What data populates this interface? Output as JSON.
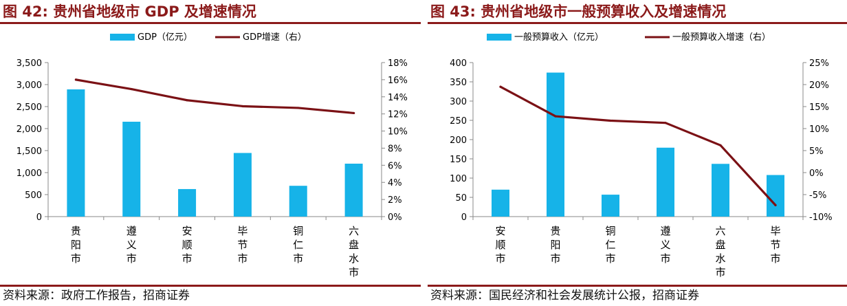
{
  "charts": [
    {
      "figure_title": "图 42: 贵州省地级市 GDP 及增速情况",
      "source": "资料来源：政府工作报告，招商证券",
      "colors": {
        "bar": "#16B3E8",
        "line": "#7B1115",
        "axis": "#888888"
      }
    },
    {
      "figure_title": "图 43: 贵州省地级市一般预算收入及增速情况",
      "source": "资料来源：国民经济和社会发展统计公报，招商证券",
      "colors": {
        "bar": "#16B3E8",
        "line": "#7B1115",
        "axis": "#888888"
      }
    }
  ],
  "chart_data": [
    {
      "type": "bar",
      "categories": [
        "贵阳市",
        "遵义市",
        "安顺市",
        "毕节市",
        "铜仁市",
        "六盘水市"
      ],
      "series": [
        {
          "name": "GDP（亿元）",
          "type": "bar",
          "axis": "left",
          "values": [
            2891,
            2156,
            626,
            1446,
            700,
            1203
          ]
        },
        {
          "name": "GDP增速（右）",
          "type": "line",
          "axis": "right",
          "values": [
            16.0,
            14.9,
            13.6,
            12.9,
            12.7,
            12.1
          ]
        }
      ],
      "y_left": {
        "ylim": [
          0,
          3500
        ],
        "ticks": [
          0,
          500,
          1000,
          1500,
          2000,
          2500,
          3000,
          3500
        ],
        "tick_labels": [
          "0",
          "500",
          "1,000",
          "1,500",
          "2,000",
          "2,500",
          "3,000",
          "3,500"
        ]
      },
      "y_right": {
        "ylim": [
          0,
          18
        ],
        "ticks": [
          0,
          2,
          4,
          6,
          8,
          10,
          12,
          14,
          16,
          18
        ],
        "tick_labels": [
          "0%",
          "2%",
          "4%",
          "6%",
          "8%",
          "10%",
          "12%",
          "14%",
          "16%",
          "18%"
        ]
      },
      "legend": "top",
      "grid": false
    },
    {
      "type": "bar",
      "categories": [
        "安顺市",
        "贵阳市",
        "铜仁市",
        "遵义市",
        "六盘水市",
        "毕节市"
      ],
      "series": [
        {
          "name": "一般预算收入（亿元）",
          "type": "bar",
          "axis": "left",
          "values": [
            70,
            374,
            57,
            179,
            137,
            108
          ]
        },
        {
          "name": "一般预算收入增速（右）",
          "type": "line",
          "axis": "right",
          "values": [
            19.5,
            12.8,
            11.8,
            11.3,
            6.2,
            -7.4
          ]
        }
      ],
      "y_left": {
        "ylim": [
          0,
          400
        ],
        "ticks": [
          0,
          50,
          100,
          150,
          200,
          250,
          300,
          350,
          400
        ],
        "tick_labels": [
          "0",
          "50",
          "100",
          "150",
          "200",
          "250",
          "300",
          "350",
          "400"
        ]
      },
      "y_right": {
        "ylim": [
          -10,
          25
        ],
        "ticks": [
          -10,
          -5,
          0,
          5,
          10,
          15,
          20,
          25
        ],
        "tick_labels": [
          "-10%",
          "-5%",
          "0%",
          "5%",
          "10%",
          "15%",
          "20%",
          "25%"
        ]
      },
      "legend": "top",
      "grid": false
    }
  ]
}
